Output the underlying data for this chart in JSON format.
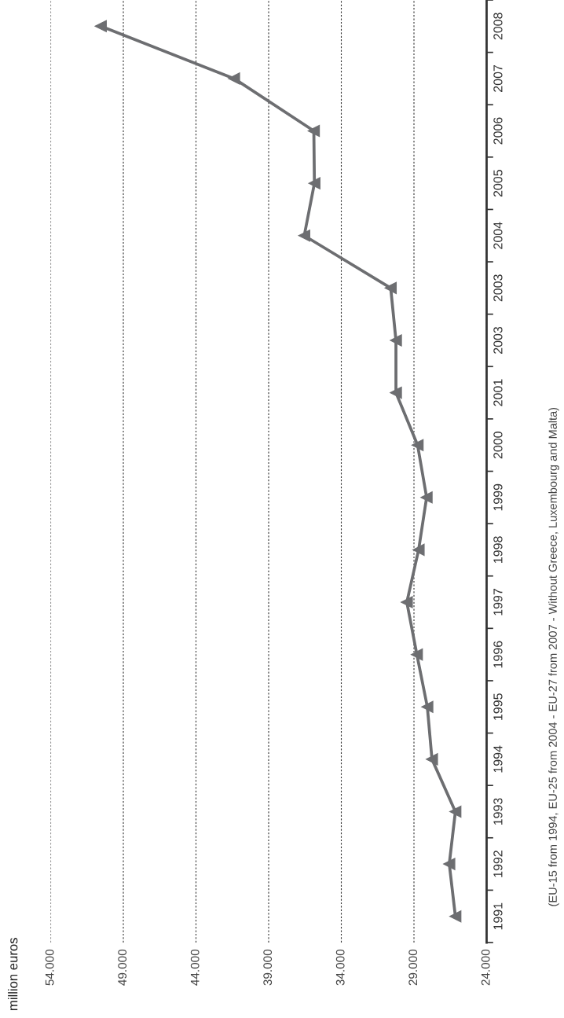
{
  "chart_data": {
    "type": "line",
    "orientation": "horizontal",
    "title": "million euros",
    "annotations": [
      "(EU-15 from 1994, EU-25 from 2004 - EU-27 from 2007 - Without Greece, Luxembourg and Malta)"
    ],
    "categories": [
      "2008",
      "2007",
      "2006",
      "2005",
      "2004",
      "2003",
      "2003",
      "2001",
      "2000",
      "1999",
      "1998",
      "1997",
      "1996",
      "1995",
      "1994",
      "1993",
      "1992",
      "1991"
    ],
    "series": [
      {
        "color": "#6d6e71",
        "values": [
          50550,
          41380,
          35890,
          35850,
          36550,
          30600,
          30240,
          30240,
          28750,
          28130,
          28680,
          29490,
          28800,
          28080,
          27760,
          26150,
          26570,
          26150
        ]
      }
    ],
    "xlim": [
      54000,
      24000
    ],
    "xticks": [
      {
        "value": 54000,
        "label": "54.000"
      },
      {
        "value": 49000,
        "label": "49.000"
      },
      {
        "value": 44000,
        "label": "44.000"
      },
      {
        "value": 39000,
        "label": "39.000"
      },
      {
        "value": 34000,
        "label": "34.000"
      },
      {
        "value": 29000,
        "label": "29.000"
      },
      {
        "value": 24000,
        "label": "24.000"
      }
    ],
    "grid": "x",
    "marker": "triangle",
    "line_style": "solid"
  }
}
